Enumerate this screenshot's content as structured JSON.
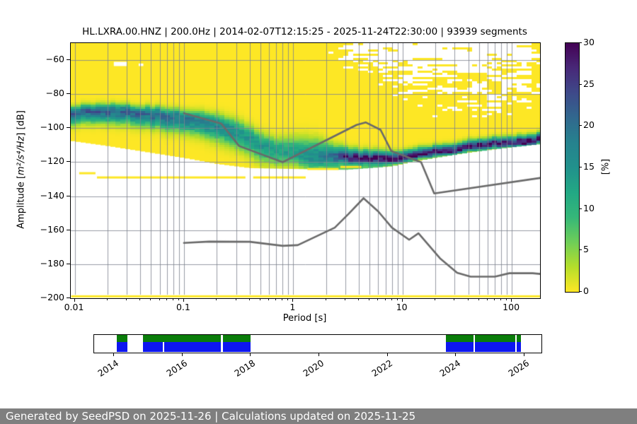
{
  "header": {
    "title": "HL.LXRA.00.HNZ | 200.0Hz | 2014-02-07T12:15:25 - 2025-11-24T22:30:00 | 93939 segments"
  },
  "footer": {
    "text": "Generated by SeedPSD on 2025-11-26 | Calculations updated on 2025-11-25"
  },
  "colors": {
    "background": "#ffffff",
    "grid": "#7d828e",
    "axis": "#000000",
    "model_line": "#6a6a6a",
    "footer_bg": "#7f7f7f",
    "footer_text": "#ffffff",
    "timeline_green": "#0a7d0a",
    "timeline_blue": "#0d16f0",
    "no_data": "#ffffff"
  },
  "chart_data": {
    "type": "heatmap",
    "title": "HL.LXRA.00.HNZ | 200.0Hz | 2014-02-07T12:15:25 - 2025-11-24T22:30:00 | 93939 segments",
    "xlabel": "Period [s]",
    "ylabel": "Amplitude [m²/s⁴/Hz] [dB]",
    "ylabel_parts": {
      "pre": "Amplitude [",
      "math": "m²/s⁴/Hz",
      "post": "] [dB]"
    },
    "xlim": [
      0.0093,
      181
    ],
    "ylim": [
      -200,
      -50
    ],
    "xscale": "log",
    "grid": true,
    "x_ticks": [
      0.01,
      0.1,
      1,
      10,
      100
    ],
    "x_tick_labels": [
      "0.01",
      "0.1",
      "1",
      "10",
      "100"
    ],
    "y_ticks": [
      -60,
      -80,
      -100,
      -120,
      -140,
      -160,
      -180,
      -200
    ],
    "y_tick_labels": [
      "−60",
      "−80",
      "−100",
      "−120",
      "−140",
      "−160",
      "−180",
      "−200"
    ],
    "colorbar": {
      "label": "[%]",
      "range": [
        0,
        30
      ],
      "ticks": [
        0,
        5,
        10,
        15,
        20,
        25,
        30
      ],
      "tick_labels": [
        "0",
        "5",
        "10",
        "15",
        "20",
        "25",
        "30"
      ],
      "viridis_stops": [
        "#440154",
        "#482878",
        "#3e4989",
        "#31688e",
        "#26828e",
        "#21918c",
        "#22a884",
        "#35b779",
        "#6ece58",
        "#b5de2b",
        "#fde725"
      ]
    },
    "ppsd_band": {
      "comment_units": "[period_s, mode_dB, peak_probability_pct, sigma_above_dB, sigma_below_dB]",
      "points": [
        [
          0.0093,
          -91.0,
          21.0,
          2.5,
          4.0
        ],
        [
          0.015,
          -90.0,
          22.0,
          2.5,
          4.0
        ],
        [
          0.025,
          -89.5,
          21.5,
          2.5,
          4.5
        ],
        [
          0.04,
          -91.0,
          21.0,
          2.5,
          4.5
        ],
        [
          0.07,
          -93.0,
          20.0,
          3.0,
          5.0
        ],
        [
          0.1,
          -94.5,
          19.0,
          3.0,
          5.0
        ],
        [
          0.15,
          -96.0,
          17.5,
          3.5,
          5.5
        ],
        [
          0.22,
          -98.5,
          16.5,
          4.0,
          6.0
        ],
        [
          0.32,
          -103.0,
          15.0,
          4.5,
          6.0
        ],
        [
          0.5,
          -109.5,
          14.0,
          4.5,
          6.0
        ],
        [
          0.7,
          -113.0,
          13.0,
          4.5,
          5.5
        ],
        [
          1.0,
          -114.5,
          13.0,
          5.5,
          4.5
        ],
        [
          1.5,
          -115.5,
          13.5,
          6.0,
          4.0
        ],
        [
          2.2,
          -116.8,
          19.0,
          4.5,
          2.5
        ],
        [
          3.0,
          -117.5,
          27.0,
          3.5,
          2.0
        ],
        [
          4.5,
          -118.0,
          30.0,
          3.0,
          1.8
        ],
        [
          7.0,
          -118.5,
          28.0,
          2.8,
          1.8
        ],
        [
          10.0,
          -117.8,
          30.0,
          2.5,
          1.7
        ],
        [
          14.0,
          -115.8,
          28.0,
          2.5,
          1.7
        ],
        [
          20.0,
          -114.0,
          30.0,
          2.3,
          1.7
        ],
        [
          30.0,
          -112.5,
          28.0,
          2.3,
          1.7
        ],
        [
          50.0,
          -110.5,
          30.0,
          2.3,
          1.7
        ],
        [
          80.0,
          -109.2,
          29.0,
          2.3,
          1.7
        ],
        [
          120.0,
          -108.2,
          30.0,
          2.3,
          1.7
        ],
        [
          181.0,
          -106.8,
          30.0,
          2.3,
          1.7
        ]
      ],
      "lower_lobe": {
        "p_range": [
          1.0,
          9.0
        ],
        "offset_db": -5.5,
        "sigma": 3.0,
        "amp": 7.0
      }
    },
    "data_floor": [
      [
        0.0093,
        -107.5
      ],
      [
        0.02,
        -110.5
      ],
      [
        0.05,
        -114.5
      ],
      [
        0.1,
        -117.5
      ],
      [
        0.2,
        -121.0
      ],
      [
        0.4,
        -123.5
      ],
      [
        1.0,
        -124.0
      ],
      [
        3.0,
        -124.5
      ],
      [
        5.0,
        -123.5
      ],
      [
        8.0,
        -122.5
      ],
      [
        12.0,
        -120.0
      ],
      [
        20.0,
        -117.5
      ],
      [
        40.0,
        -114.5
      ],
      [
        80.0,
        -112.0
      ],
      [
        181.0,
        -109.5
      ]
    ],
    "speckle_wedge": {
      "start_logp": 0.15,
      "depth_db_per_decade": 36,
      "max_depth_db": 46,
      "density": 0.8
    },
    "yellow_streaks": [
      {
        "p": [
          0.011,
          0.0155
        ],
        "v": -126.5
      },
      {
        "p": [
          0.016,
          0.365
        ],
        "v": -129.0
      },
      {
        "p": [
          0.43,
          1.3
        ],
        "v": -129.0
      },
      {
        "p": [
          1.35,
          2.6
        ],
        "v": -124.0
      },
      {
        "p": [
          2.7,
          4.2
        ],
        "v": -122.8
      },
      {
        "p": [
          0.0093,
          181
        ],
        "v": -198.9
      }
    ],
    "white_patches": [
      {
        "p": [
          0.0228,
          0.03
        ],
        "v": [
          -61.0,
          -63.5
        ]
      },
      {
        "p": [
          0.0385,
          0.0425
        ],
        "v": [
          -62.0,
          -63.5
        ]
      }
    ],
    "noise_models": {
      "comment": "Peterson NHNM / NLNM in acceleration dB, [period_s, dB]",
      "nhnm": [
        [
          0.1,
          -91.2
        ],
        [
          0.22,
          -97.4
        ],
        [
          0.32,
          -110.5
        ],
        [
          0.8,
          -120.0
        ],
        [
          3.8,
          -98.1
        ],
        [
          4.6,
          -96.6
        ],
        [
          6.3,
          -101.0
        ],
        [
          7.9,
          -113.5
        ],
        [
          14.8,
          -120.0
        ],
        [
          19.5,
          -138.4
        ],
        [
          181,
          -129.3
        ]
      ],
      "nlnm": [
        [
          0.1,
          -167.5
        ],
        [
          0.17,
          -166.7
        ],
        [
          0.4,
          -166.8
        ],
        [
          0.8,
          -169.2
        ],
        [
          1.1,
          -168.8
        ],
        [
          2.4,
          -158.5
        ],
        [
          3.2,
          -150.5
        ],
        [
          4.4,
          -141.2
        ],
        [
          6.0,
          -149.0
        ],
        [
          8.0,
          -158.5
        ],
        [
          11.5,
          -165.6
        ],
        [
          14.0,
          -161.8
        ],
        [
          22.0,
          -176.5
        ],
        [
          31.6,
          -185.0
        ],
        [
          42.0,
          -187.3
        ],
        [
          70.0,
          -187.3
        ],
        [
          95.0,
          -185.3
        ],
        [
          155.0,
          -185.3
        ],
        [
          181.0,
          -185.7
        ]
      ]
    }
  },
  "timeline": {
    "type": "availability",
    "range_years": [
      2013.43,
      2026.5
    ],
    "year_ticks": [
      2014,
      2016,
      2018,
      2020,
      2022,
      2024,
      2026
    ],
    "year_tick_labels": [
      "2014",
      "2016",
      "2018",
      "2020",
      "2022",
      "2024",
      "2026"
    ],
    "green_segments": [
      [
        2014.08,
        2014.39
      ],
      [
        2014.85,
        2017.13
      ],
      [
        2017.18,
        2017.99
      ],
      [
        2023.7,
        2024.51
      ],
      [
        2024.55,
        2025.73
      ],
      [
        2025.77,
        2025.9
      ]
    ],
    "blue_segments": [
      [
        2014.08,
        2014.39
      ],
      [
        2014.85,
        2015.44
      ],
      [
        2015.48,
        2017.13
      ],
      [
        2017.18,
        2017.99
      ],
      [
        2023.7,
        2024.51
      ],
      [
        2024.55,
        2025.73
      ],
      [
        2025.77,
        2025.9
      ]
    ]
  }
}
